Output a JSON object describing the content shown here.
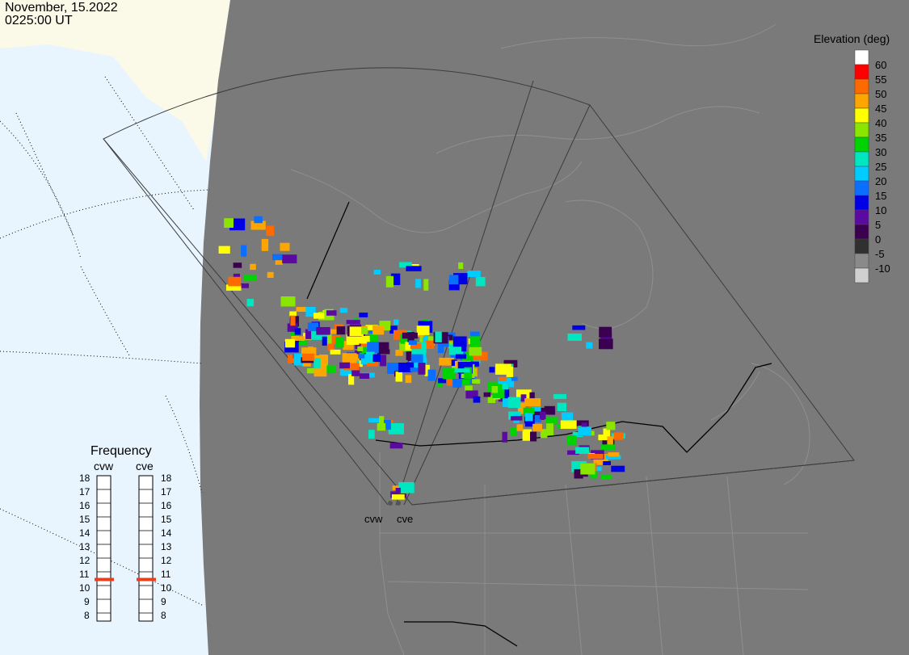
{
  "header": {
    "date": "November, 15.2022",
    "time": "0225:00 UT"
  },
  "legend": {
    "title": "Elevation (deg)",
    "entries": [
      {
        "label": "60",
        "color": "#ffffff"
      },
      {
        "label": "55",
        "color": "#ff0000"
      },
      {
        "label": "50",
        "color": "#ff6a00"
      },
      {
        "label": "45",
        "color": "#ffa500"
      },
      {
        "label": "40",
        "color": "#ffff00"
      },
      {
        "label": "35",
        "color": "#8ae600"
      },
      {
        "label": "30",
        "color": "#00d400"
      },
      {
        "label": "25",
        "color": "#00e6c0"
      },
      {
        "label": "20",
        "color": "#00ccff"
      },
      {
        "label": "15",
        "color": "#0a6eff"
      },
      {
        "label": "10",
        "color": "#0000e6"
      },
      {
        "label": "5",
        "color": "#5a0aa0"
      },
      {
        "label": "0",
        "color": "#3c0050"
      },
      {
        "label": "-5",
        "color": "#303030"
      },
      {
        "label": "-10",
        "color": "#8a8a8a"
      },
      {
        "label": "",
        "color": "#d0d0d0"
      }
    ]
  },
  "frequency": {
    "title": "Frequency",
    "radars": [
      {
        "name": "cvw",
        "value": 10.5
      },
      {
        "name": "cve",
        "value": 10.5
      }
    ],
    "scale": [
      "18",
      "17",
      "16",
      "15",
      "14",
      "13",
      "12",
      "11",
      "10",
      "9",
      "8"
    ],
    "marker_color": "#e8401c"
  },
  "sites": [
    {
      "name": "cvw"
    },
    {
      "name": "cve"
    }
  ],
  "colors": {
    "background": "#7a7a7a",
    "ocean": "#e8f5ff",
    "land_outside": "#fbf9e8",
    "border": "#000000",
    "coast": "#8f8f8f"
  }
}
